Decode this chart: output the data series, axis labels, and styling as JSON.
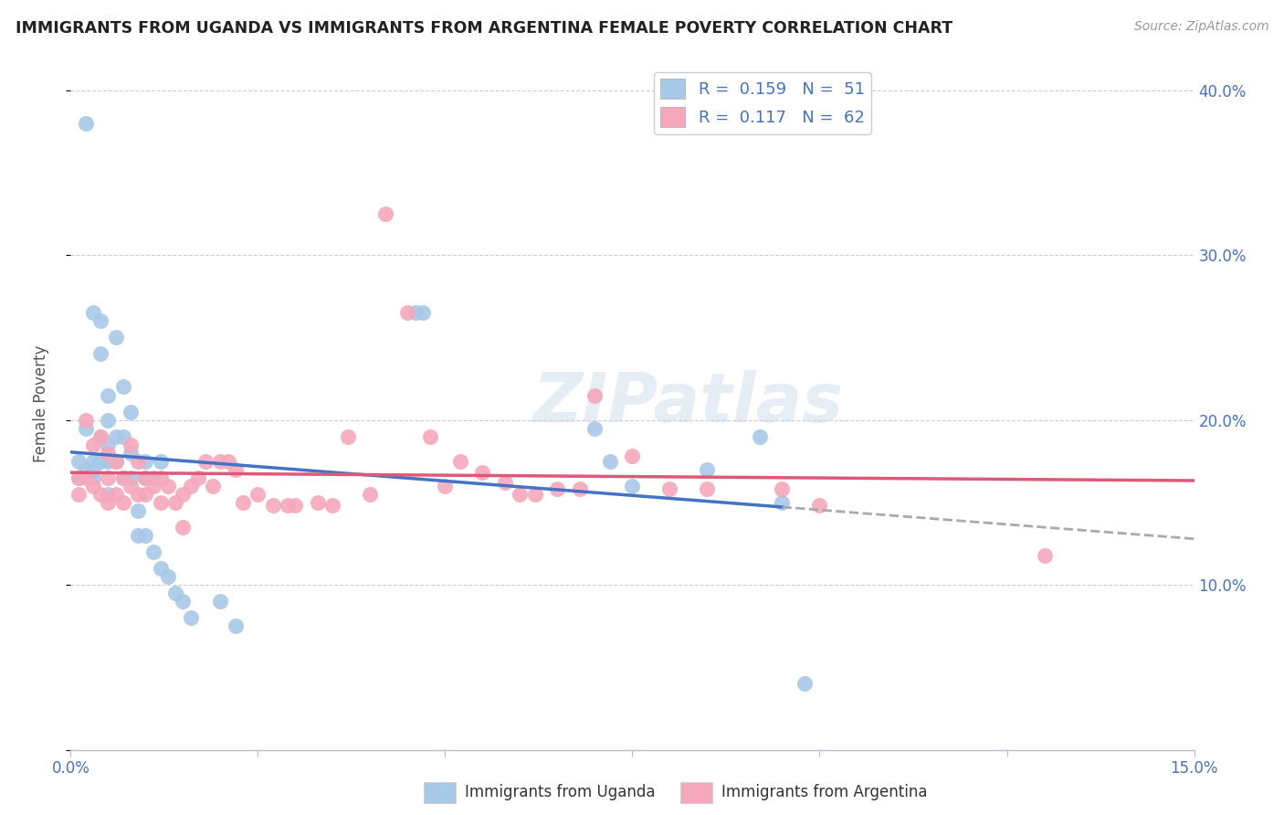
{
  "title": "IMMIGRANTS FROM UGANDA VS IMMIGRANTS FROM ARGENTINA FEMALE POVERTY CORRELATION CHART",
  "source": "Source: ZipAtlas.com",
  "ylabel": "Female Poverty",
  "xlim": [
    0.0,
    0.15
  ],
  "ylim": [
    0.0,
    0.42
  ],
  "xticks": [
    0.0,
    0.025,
    0.05,
    0.075,
    0.1,
    0.125,
    0.15
  ],
  "xtick_labels": [
    "0.0%",
    "",
    "",
    "",
    "",
    "",
    "15.0%"
  ],
  "ytick_positions": [
    0.0,
    0.1,
    0.2,
    0.3,
    0.4
  ],
  "ytick_labels": [
    "",
    "10.0%",
    "20.0%",
    "30.0%",
    "40.0%"
  ],
  "legend_r_uganda": "0.159",
  "legend_n_uganda": "51",
  "legend_r_argentina": "0.117",
  "legend_n_argentina": "62",
  "uganda_color": "#a8c8e8",
  "argentina_color": "#f5a8bc",
  "uganda_line_color": "#4472c4",
  "argentina_line_color": "#e05878",
  "watermark": "ZIPatlas",
  "uganda_x": [
    0.001,
    0.001,
    0.002,
    0.002,
    0.002,
    0.003,
    0.003,
    0.003,
    0.003,
    0.004,
    0.004,
    0.004,
    0.004,
    0.005,
    0.005,
    0.005,
    0.005,
    0.005,
    0.006,
    0.006,
    0.006,
    0.007,
    0.007,
    0.007,
    0.008,
    0.008,
    0.008,
    0.009,
    0.009,
    0.01,
    0.01,
    0.01,
    0.011,
    0.011,
    0.012,
    0.012,
    0.013,
    0.014,
    0.015,
    0.016,
    0.02,
    0.022,
    0.046,
    0.047,
    0.07,
    0.072,
    0.075,
    0.085,
    0.092,
    0.095,
    0.098
  ],
  "uganda_y": [
    0.175,
    0.165,
    0.38,
    0.195,
    0.17,
    0.265,
    0.175,
    0.17,
    0.165,
    0.26,
    0.24,
    0.19,
    0.175,
    0.215,
    0.2,
    0.185,
    0.175,
    0.155,
    0.25,
    0.19,
    0.175,
    0.22,
    0.19,
    0.165,
    0.205,
    0.18,
    0.165,
    0.145,
    0.13,
    0.175,
    0.165,
    0.13,
    0.165,
    0.12,
    0.175,
    0.11,
    0.105,
    0.095,
    0.09,
    0.08,
    0.09,
    0.075,
    0.265,
    0.265,
    0.195,
    0.175,
    0.16,
    0.17,
    0.19,
    0.15,
    0.04
  ],
  "argentina_x": [
    0.001,
    0.001,
    0.002,
    0.002,
    0.003,
    0.003,
    0.004,
    0.004,
    0.005,
    0.005,
    0.005,
    0.006,
    0.006,
    0.007,
    0.007,
    0.008,
    0.008,
    0.009,
    0.009,
    0.01,
    0.01,
    0.011,
    0.012,
    0.012,
    0.013,
    0.014,
    0.015,
    0.015,
    0.016,
    0.017,
    0.018,
    0.019,
    0.02,
    0.021,
    0.022,
    0.023,
    0.025,
    0.027,
    0.029,
    0.03,
    0.033,
    0.035,
    0.037,
    0.04,
    0.042,
    0.045,
    0.048,
    0.05,
    0.052,
    0.055,
    0.058,
    0.06,
    0.062,
    0.065,
    0.068,
    0.07,
    0.075,
    0.08,
    0.085,
    0.095,
    0.1,
    0.13
  ],
  "argentina_y": [
    0.165,
    0.155,
    0.2,
    0.165,
    0.185,
    0.16,
    0.19,
    0.155,
    0.165,
    0.18,
    0.15,
    0.175,
    0.155,
    0.165,
    0.15,
    0.185,
    0.16,
    0.175,
    0.155,
    0.165,
    0.155,
    0.16,
    0.165,
    0.15,
    0.16,
    0.15,
    0.155,
    0.135,
    0.16,
    0.165,
    0.175,
    0.16,
    0.175,
    0.175,
    0.17,
    0.15,
    0.155,
    0.148,
    0.148,
    0.148,
    0.15,
    0.148,
    0.19,
    0.155,
    0.325,
    0.265,
    0.19,
    0.16,
    0.175,
    0.168,
    0.162,
    0.155,
    0.155,
    0.158,
    0.158,
    0.215,
    0.178,
    0.158,
    0.158,
    0.158,
    0.148,
    0.118
  ]
}
